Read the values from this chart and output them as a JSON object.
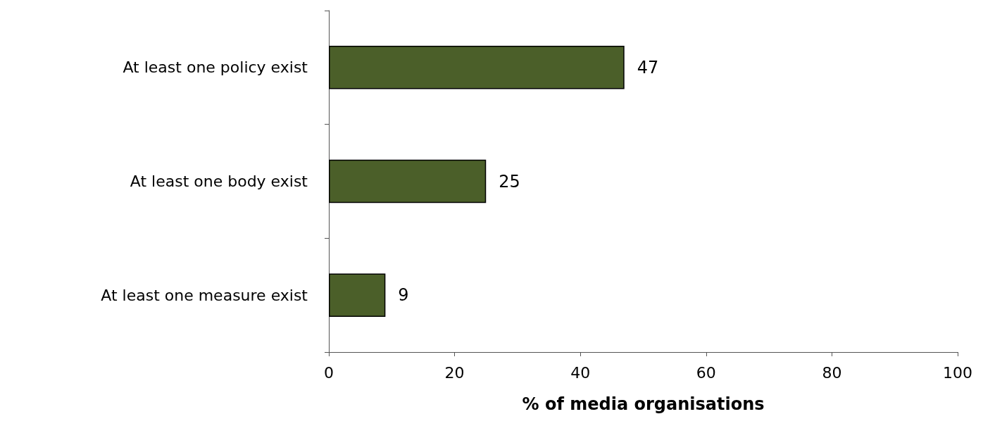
{
  "chart_data": {
    "type": "bar",
    "orientation": "horizontal",
    "categories": [
      "At least one policy exist",
      "At least one body exist",
      "At least one measure exist"
    ],
    "values": [
      47,
      25,
      9
    ],
    "color": "#4b5f29",
    "data_labels": true,
    "xlim": [
      0,
      100
    ],
    "xticks": [
      0,
      20,
      40,
      60,
      80,
      100
    ],
    "xlabel": "% of media organisations",
    "grid": false
  }
}
